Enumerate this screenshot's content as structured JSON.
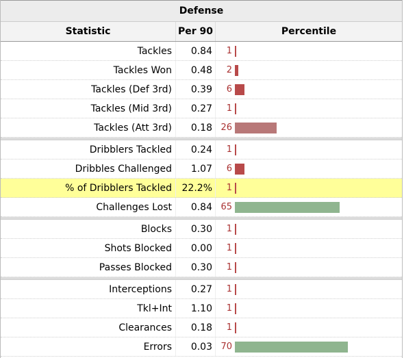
{
  "table": {
    "group_title": "Defense",
    "columns": {
      "statistic": "Statistic",
      "per90": "Per 90",
      "percentile": "Percentile"
    },
    "colors": {
      "low": "#b84a4a",
      "mid": "#b87878",
      "high": "#8fb58f"
    },
    "groups": [
      [
        {
          "stat": "Tackles",
          "per90": "0.84",
          "pct": 1
        },
        {
          "stat": "Tackles Won",
          "per90": "0.48",
          "pct": 2
        },
        {
          "stat": "Tackles (Def 3rd)",
          "per90": "0.39",
          "pct": 6
        },
        {
          "stat": "Tackles (Mid 3rd)",
          "per90": "0.27",
          "pct": 1
        },
        {
          "stat": "Tackles (Att 3rd)",
          "per90": "0.18",
          "pct": 26
        }
      ],
      [
        {
          "stat": "Dribblers Tackled",
          "per90": "0.24",
          "pct": 1
        },
        {
          "stat": "Dribbles Challenged",
          "per90": "1.07",
          "pct": 6
        },
        {
          "stat": "% of Dribblers Tackled",
          "per90": "22.2%",
          "pct": 1,
          "highlight": true
        },
        {
          "stat": "Challenges Lost",
          "per90": "0.84",
          "pct": 65
        }
      ],
      [
        {
          "stat": "Blocks",
          "per90": "0.30",
          "pct": 1
        },
        {
          "stat": "Shots Blocked",
          "per90": "0.00",
          "pct": 1
        },
        {
          "stat": "Passes Blocked",
          "per90": "0.30",
          "pct": 1
        }
      ],
      [
        {
          "stat": "Interceptions",
          "per90": "0.27",
          "pct": 1
        },
        {
          "stat": "Tkl+Int",
          "per90": "1.10",
          "pct": 1
        },
        {
          "stat": "Clearances",
          "per90": "0.18",
          "pct": 1
        },
        {
          "stat": "Errors",
          "per90": "0.03",
          "pct": 70
        }
      ]
    ]
  }
}
